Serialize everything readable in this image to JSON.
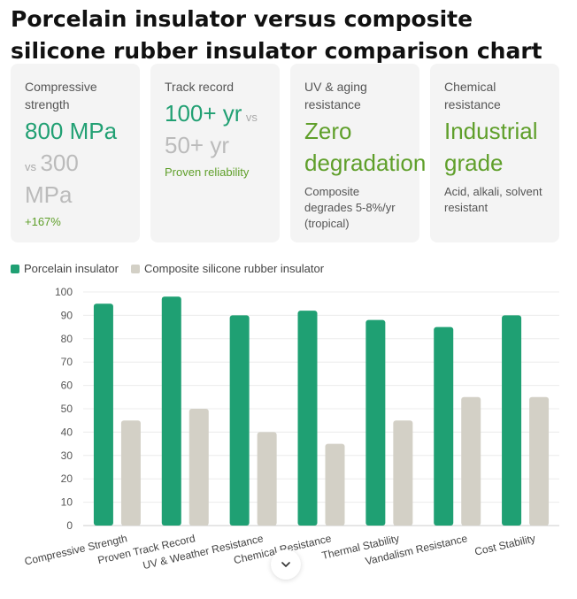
{
  "title": "Porcelain insulator versus composite silicone rubber insulator comparison chart",
  "cards": [
    {
      "label": "Compressive strength",
      "value": "800 MPa",
      "vs_text": "vs",
      "compare": "300 MPa",
      "note": "+167%"
    },
    {
      "label": "Track record",
      "value": "100+ yr",
      "vs_text": "vs",
      "compare": "50+ yr",
      "note": "Proven reliability"
    },
    {
      "label": "UV & aging resistance",
      "value": "Zero degradation",
      "note": "Composite degrades 5-8%/yr (tropical)"
    },
    {
      "label": "Chemical resistance",
      "value": "Industrial grade",
      "note": "Acid, alkali, solvent resistant"
    }
  ],
  "colors": {
    "porcelain": "#1fa073",
    "composite": "#d3d0c6",
    "accent_olive": "#5f9f2a"
  },
  "chart_data": {
    "type": "bar",
    "categories": [
      "Compressive Strength",
      "Proven Track Record",
      "UV & Weather Resistance",
      "Chemical Resistance",
      "Thermal Stability",
      "Vandalism Resistance",
      "Cost Stability"
    ],
    "series": [
      {
        "name": "Porcelain insulator",
        "values": [
          95,
          98,
          90,
          92,
          88,
          85,
          90
        ]
      },
      {
        "name": "Composite silicone rubber insulator",
        "values": [
          45,
          50,
          40,
          35,
          45,
          55,
          55
        ]
      }
    ],
    "yticks": [
      0,
      10,
      20,
      30,
      40,
      50,
      60,
      70,
      80,
      90,
      100
    ],
    "ylim": [
      0,
      100
    ],
    "grid": true,
    "legend": "top-left"
  }
}
